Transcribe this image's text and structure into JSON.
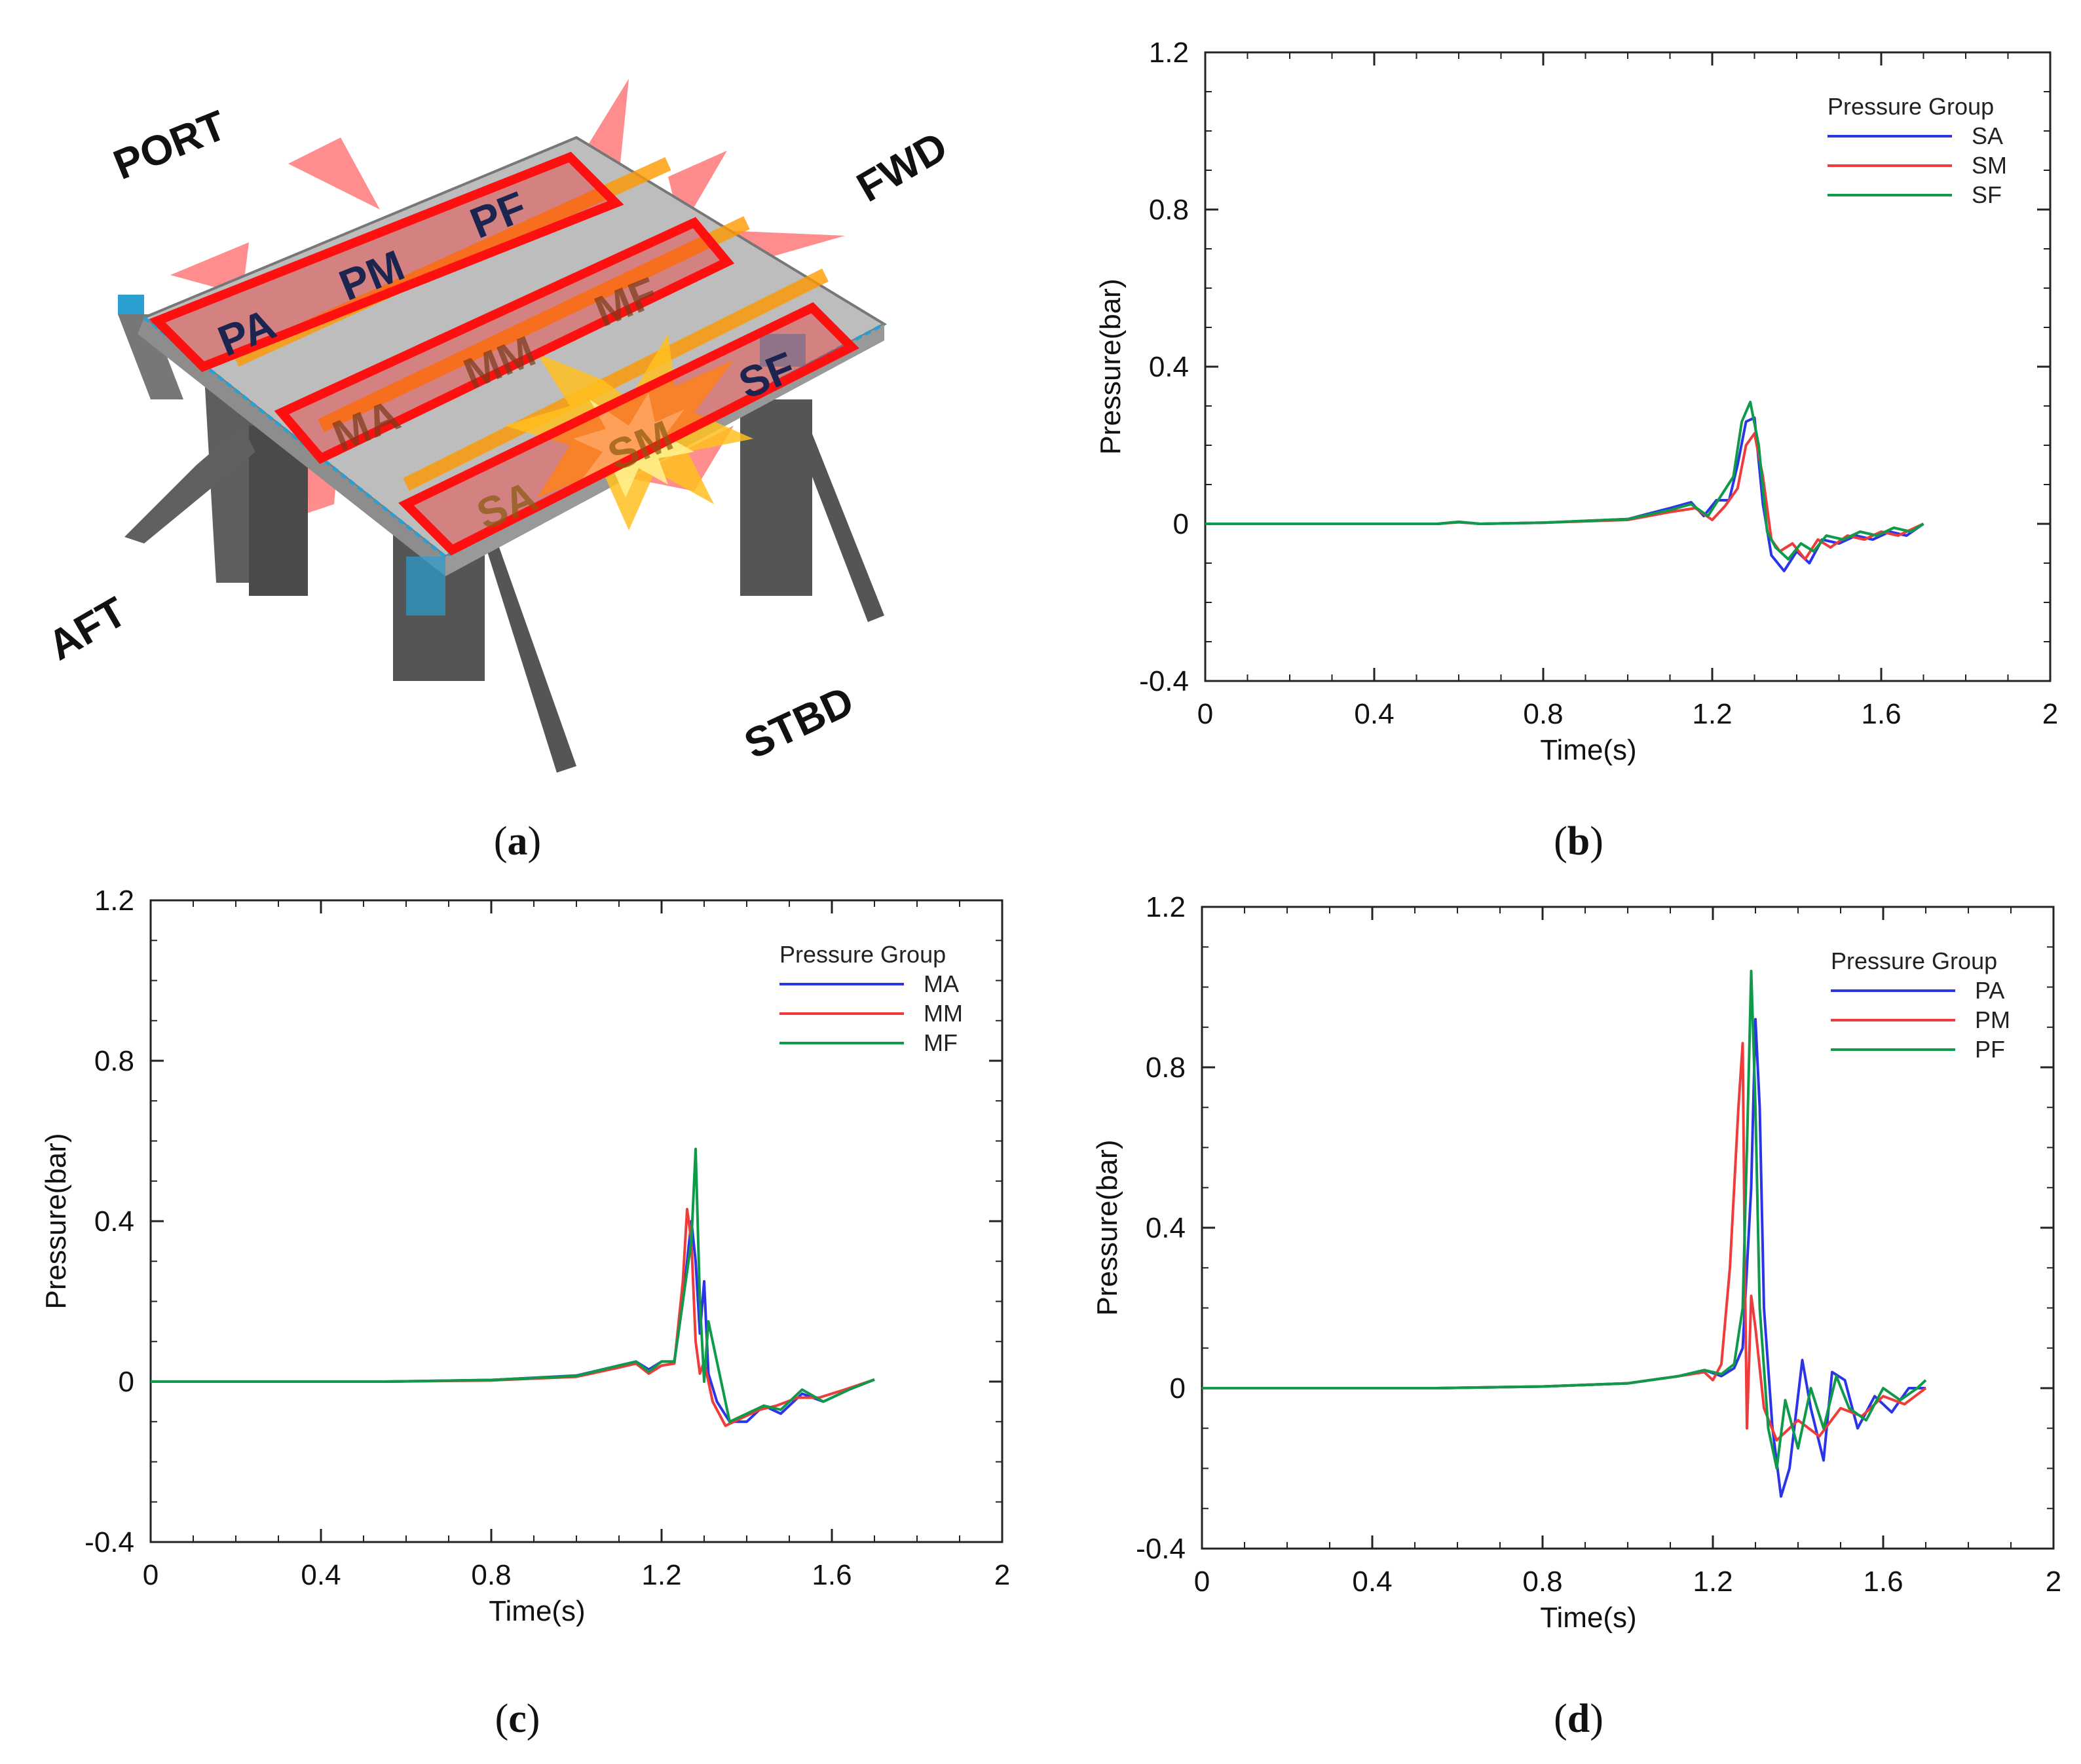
{
  "figure_a": {
    "labels": {
      "port": "PORT",
      "fwd": "FWD",
      "aft": "AFT",
      "stbd": "STBD"
    },
    "zones": [
      "PA",
      "PM",
      "PF",
      "MA",
      "MM",
      "MF",
      "SA",
      "SM",
      "SF"
    ],
    "colors": {
      "deck": "#b5b5b5",
      "steel": "#6e6e6e",
      "rail": "#2a9fd0",
      "zone_outline": "#ff1010",
      "flame": "#ff5050",
      "blast": "#ffc020",
      "beam": "#ff9a00"
    }
  },
  "captions": {
    "a": "a",
    "b": "b",
    "c": "c",
    "d": "d"
  },
  "colors": {
    "blue": "#2b35e8",
    "red": "#ef3b3b",
    "green": "#0f9a4a"
  },
  "chart_data": [
    {
      "id": "b",
      "type": "line",
      "title": "",
      "xlabel": "Time(s)",
      "ylabel": "Pressure(bar)",
      "xlim": [
        0,
        2
      ],
      "ylim": [
        -0.4,
        1.2
      ],
      "xticks": [
        "0",
        "0.4",
        "0.8",
        "1.2",
        "1.6",
        "2"
      ],
      "yticks": [
        "-0.4",
        "0",
        "0.4",
        "0.8",
        "1.2"
      ],
      "legend_title": "Pressure Group",
      "series": [
        {
          "name": "SA",
          "color": "#2b35e8",
          "x": [
            0,
            0.55,
            0.6,
            0.65,
            0.8,
            1.0,
            1.1,
            1.15,
            1.18,
            1.21,
            1.24,
            1.26,
            1.28,
            1.3,
            1.32,
            1.34,
            1.37,
            1.4,
            1.43,
            1.46,
            1.5,
            1.54,
            1.58,
            1.62,
            1.66,
            1.7
          ],
          "y": [
            0,
            0,
            0.005,
            0,
            0.003,
            0.012,
            0.04,
            0.055,
            0.02,
            0.06,
            0.06,
            0.15,
            0.26,
            0.27,
            0.05,
            -0.08,
            -0.12,
            -0.07,
            -0.1,
            -0.04,
            -0.05,
            -0.03,
            -0.04,
            -0.02,
            -0.03,
            0
          ]
        },
        {
          "name": "SM",
          "color": "#ef3b3b",
          "x": [
            0,
            0.55,
            0.6,
            0.65,
            0.8,
            1.0,
            1.1,
            1.16,
            1.2,
            1.23,
            1.26,
            1.28,
            1.3,
            1.32,
            1.34,
            1.36,
            1.39,
            1.42,
            1.45,
            1.48,
            1.52,
            1.56,
            1.6,
            1.64,
            1.68,
            1.7
          ],
          "y": [
            0,
            0,
            0.004,
            0,
            0.003,
            0.01,
            0.03,
            0.04,
            0.01,
            0.045,
            0.09,
            0.2,
            0.23,
            0.12,
            -0.04,
            -0.07,
            -0.05,
            -0.09,
            -0.04,
            -0.06,
            -0.03,
            -0.04,
            -0.02,
            -0.03,
            -0.01,
            0
          ]
        },
        {
          "name": "SF",
          "color": "#0f9a4a",
          "x": [
            0,
            0.55,
            0.6,
            0.65,
            0.8,
            1.0,
            1.1,
            1.15,
            1.19,
            1.22,
            1.25,
            1.27,
            1.29,
            1.31,
            1.33,
            1.35,
            1.38,
            1.41,
            1.44,
            1.47,
            1.51,
            1.55,
            1.59,
            1.63,
            1.67,
            1.7
          ],
          "y": [
            0,
            0,
            0.005,
            0,
            0.003,
            0.012,
            0.035,
            0.05,
            0.02,
            0.07,
            0.12,
            0.26,
            0.31,
            0.2,
            -0.02,
            -0.06,
            -0.09,
            -0.05,
            -0.07,
            -0.03,
            -0.04,
            -0.02,
            -0.03,
            -0.01,
            -0.02,
            0
          ]
        }
      ]
    },
    {
      "id": "c",
      "type": "line",
      "title": "",
      "xlabel": "Time(s)",
      "ylabel": "Pressure(bar)",
      "xlim": [
        0,
        2
      ],
      "ylim": [
        -0.4,
        1.2
      ],
      "xticks": [
        "0",
        "0.4",
        "0.8",
        "1.2",
        "1.6",
        "2"
      ],
      "yticks": [
        "-0.4",
        "0",
        "0.4",
        "0.8",
        "1.2"
      ],
      "legend_title": "Pressure Group",
      "series": [
        {
          "name": "MA",
          "color": "#2b35e8",
          "x": [
            0,
            0.55,
            0.8,
            1.0,
            1.1,
            1.14,
            1.17,
            1.2,
            1.23,
            1.25,
            1.27,
            1.28,
            1.29,
            1.3,
            1.31,
            1.33,
            1.36,
            1.4,
            1.44,
            1.48,
            1.53,
            1.58,
            1.64,
            1.7
          ],
          "y": [
            0,
            0,
            0.004,
            0.015,
            0.04,
            0.05,
            0.03,
            0.05,
            0.05,
            0.2,
            0.4,
            0.3,
            0.12,
            0.25,
            0.02,
            -0.05,
            -0.1,
            -0.1,
            -0.06,
            -0.08,
            -0.03,
            -0.05,
            -0.02,
            0.005
          ]
        },
        {
          "name": "MM",
          "color": "#ef3b3b",
          "x": [
            0,
            0.55,
            0.8,
            1.0,
            1.1,
            1.14,
            1.17,
            1.2,
            1.23,
            1.25,
            1.26,
            1.27,
            1.28,
            1.29,
            1.3,
            1.32,
            1.35,
            1.39,
            1.43,
            1.47,
            1.52,
            1.57,
            1.63,
            1.7
          ],
          "y": [
            0,
            0,
            0.003,
            0.012,
            0.035,
            0.045,
            0.02,
            0.04,
            0.045,
            0.25,
            0.43,
            0.35,
            0.1,
            0.02,
            0.05,
            -0.05,
            -0.11,
            -0.09,
            -0.07,
            -0.06,
            -0.04,
            -0.04,
            -0.02,
            0.005
          ]
        },
        {
          "name": "MF",
          "color": "#0f9a4a",
          "x": [
            0,
            0.55,
            0.8,
            1.0,
            1.1,
            1.14,
            1.17,
            1.2,
            1.23,
            1.25,
            1.27,
            1.28,
            1.29,
            1.3,
            1.31,
            1.33,
            1.36,
            1.4,
            1.44,
            1.48,
            1.53,
            1.58,
            1.64,
            1.7
          ],
          "y": [
            0,
            0,
            0.004,
            0.014,
            0.04,
            0.05,
            0.025,
            0.05,
            0.05,
            0.2,
            0.35,
            0.58,
            0.2,
            0.0,
            0.15,
            0.05,
            -0.1,
            -0.08,
            -0.06,
            -0.07,
            -0.02,
            -0.05,
            -0.02,
            0.005
          ]
        }
      ]
    },
    {
      "id": "d",
      "type": "line",
      "title": "",
      "xlabel": "Time(s)",
      "ylabel": "Pressure(bar)",
      "xlim": [
        0,
        2
      ],
      "ylim": [
        -0.4,
        1.2
      ],
      "xticks": [
        "0",
        "0.4",
        "0.8",
        "1.2",
        "1.6",
        "2"
      ],
      "yticks": [
        "-0.4",
        "0",
        "0.4",
        "0.8",
        "1.2"
      ],
      "legend_title": "Pressure Group",
      "series": [
        {
          "name": "PA",
          "color": "#2b35e8",
          "x": [
            0,
            0.55,
            0.8,
            1.0,
            1.12,
            1.18,
            1.22,
            1.25,
            1.27,
            1.29,
            1.3,
            1.31,
            1.32,
            1.34,
            1.36,
            1.38,
            1.41,
            1.43,
            1.46,
            1.48,
            1.51,
            1.54,
            1.58,
            1.62,
            1.66,
            1.7
          ],
          "y": [
            0,
            0,
            0.004,
            0.012,
            0.03,
            0.045,
            0.03,
            0.05,
            0.1,
            0.5,
            0.92,
            0.7,
            0.2,
            -0.1,
            -0.27,
            -0.2,
            0.07,
            -0.05,
            -0.18,
            0.04,
            0.02,
            -0.1,
            -0.02,
            -0.06,
            0.0,
            0.0
          ]
        },
        {
          "name": "PM",
          "color": "#ef3b3b",
          "x": [
            0,
            0.55,
            0.8,
            1.0,
            1.12,
            1.18,
            1.2,
            1.22,
            1.24,
            1.26,
            1.27,
            1.275,
            1.28,
            1.29,
            1.3,
            1.32,
            1.35,
            1.4,
            1.45,
            1.5,
            1.55,
            1.6,
            1.65,
            1.7
          ],
          "y": [
            0,
            0,
            0.004,
            0.012,
            0.03,
            0.04,
            0.02,
            0.06,
            0.3,
            0.7,
            0.86,
            0.3,
            -0.1,
            0.23,
            0.15,
            -0.05,
            -0.13,
            -0.08,
            -0.12,
            -0.05,
            -0.07,
            -0.02,
            -0.04,
            0.0
          ]
        },
        {
          "name": "PF",
          "color": "#0f9a4a",
          "x": [
            0,
            0.55,
            0.8,
            1.0,
            1.12,
            1.18,
            1.22,
            1.25,
            1.27,
            1.28,
            1.29,
            1.3,
            1.31,
            1.33,
            1.35,
            1.37,
            1.4,
            1.43,
            1.46,
            1.49,
            1.52,
            1.56,
            1.6,
            1.64,
            1.68,
            1.7
          ],
          "y": [
            0,
            0,
            0.004,
            0.012,
            0.03,
            0.045,
            0.035,
            0.06,
            0.2,
            0.6,
            1.04,
            0.7,
            0.2,
            -0.1,
            -0.2,
            -0.03,
            -0.15,
            0.0,
            -0.1,
            0.03,
            -0.05,
            -0.08,
            0.0,
            -0.03,
            0.0,
            0.02
          ]
        }
      ]
    }
  ]
}
